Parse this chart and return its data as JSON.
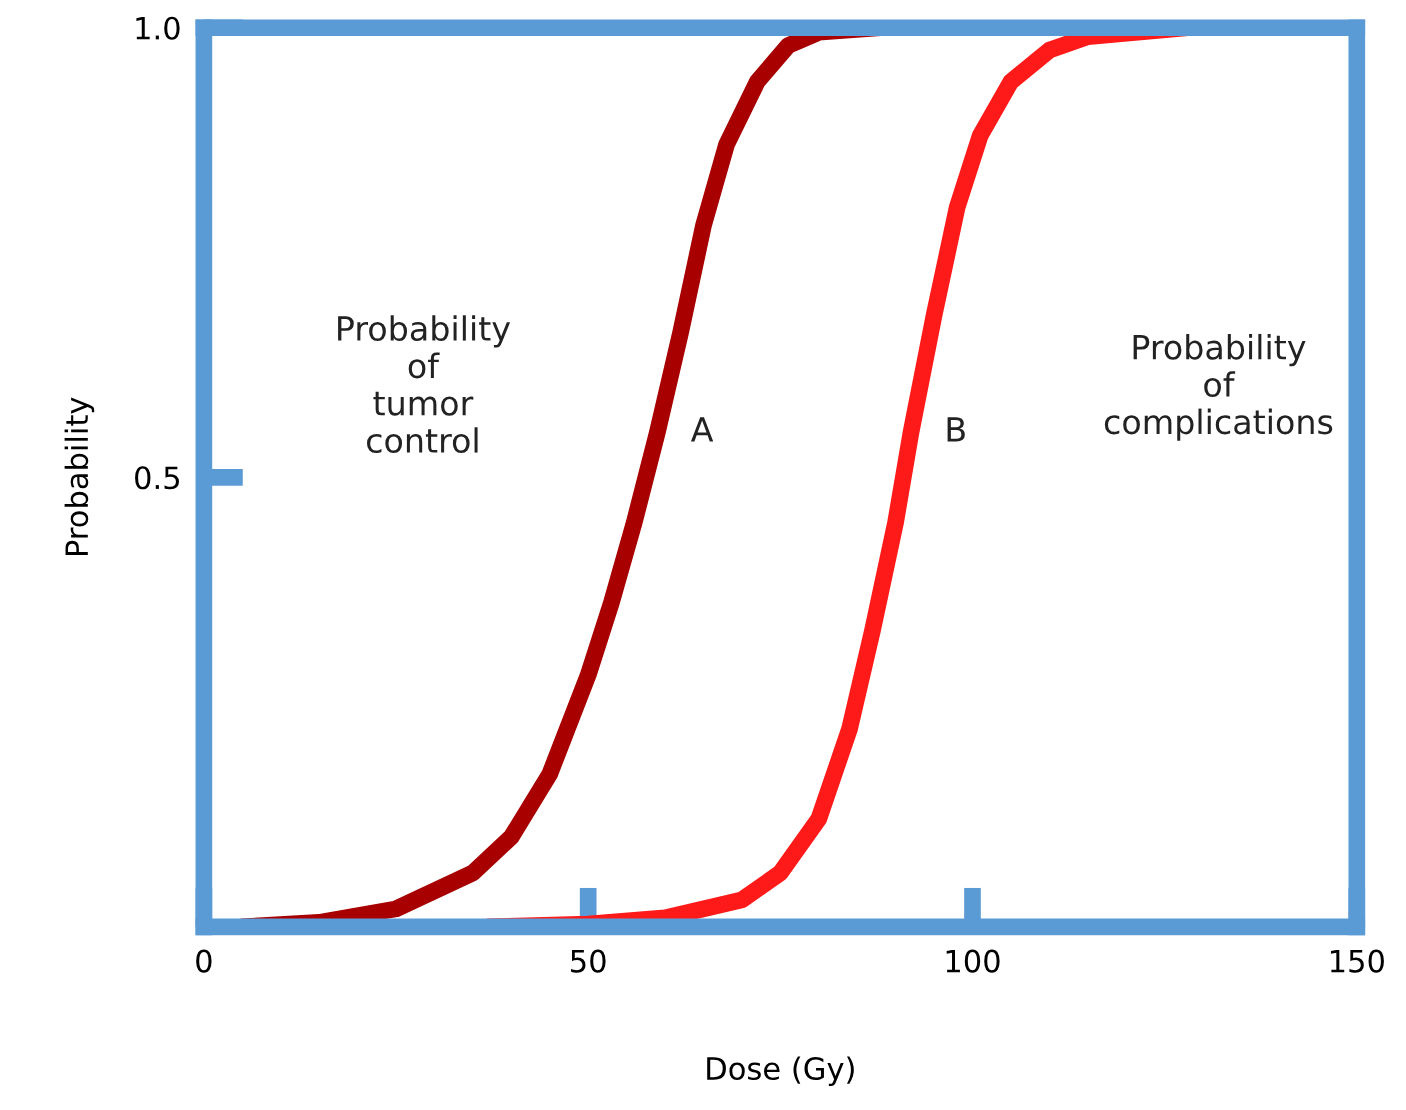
{
  "chart_data": {
    "type": "line",
    "xlabel": "Dose (Gy)",
    "ylabel": "Probability",
    "xlim": [
      0,
      150
    ],
    "ylim": [
      0,
      1.0
    ],
    "xticks": [
      0,
      50,
      100,
      150
    ],
    "yticks": [
      0.5,
      {
        "value": 1.0,
        "label": "1.0"
      }
    ],
    "grid": false,
    "legend": false,
    "marker": "none",
    "line_style": "solid",
    "series": [
      {
        "name": "A",
        "color": "#a80000",
        "x": [
          5,
          15,
          25,
          35,
          40,
          45,
          50,
          53,
          56,
          59,
          62,
          65,
          68,
          72,
          76,
          80,
          88
        ],
        "values": [
          0,
          0.005,
          0.02,
          0.06,
          0.1,
          0.17,
          0.28,
          0.36,
          0.45,
          0.55,
          0.66,
          0.78,
          0.87,
          0.94,
          0.98,
          0.995,
          1.0
        ]
      },
      {
        "name": "B",
        "color": "#ff1a1a",
        "x": [
          37,
          50,
          60,
          70,
          75,
          80,
          84,
          87,
          90,
          92,
          95,
          98,
          101,
          105,
          110,
          115,
          128
        ],
        "values": [
          0,
          0.003,
          0.01,
          0.03,
          0.06,
          0.12,
          0.22,
          0.33,
          0.45,
          0.55,
          0.68,
          0.8,
          0.88,
          0.94,
          0.975,
          0.99,
          1.0
        ]
      }
    ],
    "annotations": [
      "Probability\nof\ntumor\ncontrol",
      "Probability\nof\ncomplications"
    ]
  }
}
